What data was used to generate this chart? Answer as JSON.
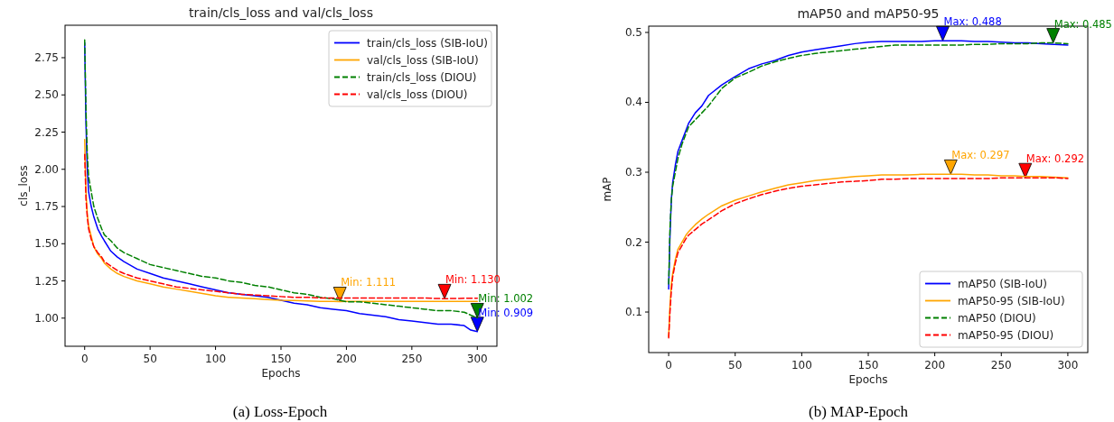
{
  "chart_data": [
    {
      "type": "line",
      "title": "train/cls_loss and val/cls_loss",
      "xlabel": "Epochs",
      "ylabel": "cls_loss",
      "x": [
        0,
        1,
        2,
        3,
        5,
        7,
        10,
        13,
        15,
        20,
        25,
        30,
        40,
        50,
        60,
        70,
        80,
        90,
        100,
        110,
        120,
        130,
        140,
        150,
        160,
        170,
        180,
        190,
        195,
        200,
        210,
        220,
        230,
        240,
        250,
        260,
        270,
        275,
        280,
        290,
        295,
        300
      ],
      "series": [
        {
          "name": "train/cls_loss (SIB-IoU)",
          "color": "#0000ff",
          "line_style": "solid",
          "values": [
            2.85,
            2.3,
            2.0,
            1.85,
            1.75,
            1.68,
            1.6,
            1.55,
            1.52,
            1.45,
            1.41,
            1.38,
            1.33,
            1.3,
            1.27,
            1.25,
            1.23,
            1.21,
            1.19,
            1.17,
            1.16,
            1.15,
            1.14,
            1.12,
            1.1,
            1.09,
            1.07,
            1.06,
            1.055,
            1.05,
            1.03,
            1.02,
            1.01,
            0.99,
            0.98,
            0.97,
            0.96,
            0.96,
            0.96,
            0.95,
            0.92,
            0.909
          ]
        },
        {
          "name": "val/cls_loss (SIB-IoU)",
          "color": "#ffa500",
          "line_style": "solid",
          "values": [
            2.2,
            1.85,
            1.7,
            1.62,
            1.55,
            1.48,
            1.43,
            1.4,
            1.37,
            1.33,
            1.3,
            1.28,
            1.25,
            1.23,
            1.21,
            1.195,
            1.18,
            1.165,
            1.15,
            1.14,
            1.135,
            1.13,
            1.125,
            1.12,
            1.118,
            1.115,
            1.113,
            1.112,
            1.111,
            1.112,
            1.112,
            1.112,
            1.112,
            1.112,
            1.112,
            1.112,
            1.112,
            1.112,
            1.112,
            1.112,
            1.112,
            1.112
          ]
        },
        {
          "name": "train/cls_loss (DIOU)",
          "color": "#008000",
          "line_style": "dashed",
          "values": [
            2.87,
            2.4,
            2.1,
            1.95,
            1.85,
            1.75,
            1.67,
            1.6,
            1.56,
            1.52,
            1.47,
            1.44,
            1.4,
            1.36,
            1.34,
            1.32,
            1.3,
            1.28,
            1.27,
            1.25,
            1.24,
            1.22,
            1.21,
            1.19,
            1.17,
            1.16,
            1.14,
            1.13,
            1.12,
            1.11,
            1.11,
            1.1,
            1.09,
            1.08,
            1.07,
            1.06,
            1.05,
            1.05,
            1.05,
            1.04,
            1.02,
            1.002
          ]
        },
        {
          "name": "val/cls_loss (DIOU)",
          "color": "#ff0000",
          "line_style": "dashed",
          "values": [
            2.1,
            1.8,
            1.68,
            1.6,
            1.53,
            1.48,
            1.44,
            1.41,
            1.38,
            1.35,
            1.32,
            1.3,
            1.27,
            1.25,
            1.23,
            1.21,
            1.2,
            1.19,
            1.18,
            1.17,
            1.16,
            1.155,
            1.15,
            1.145,
            1.14,
            1.14,
            1.135,
            1.135,
            1.135,
            1.135,
            1.135,
            1.135,
            1.135,
            1.135,
            1.135,
            1.135,
            1.132,
            1.13,
            1.132,
            1.133,
            1.133,
            1.133
          ]
        }
      ],
      "xlim": [
        -15,
        315
      ],
      "xticks": [
        0,
        50,
        100,
        150,
        200,
        250,
        300
      ],
      "ylim": [
        0.811,
        2.968
      ],
      "yticks": [
        {
          "value": 1,
          "label": "1.00"
        },
        {
          "value": 1.25,
          "label": "1.25"
        },
        {
          "value": 1.5,
          "label": "1.50"
        },
        {
          "value": 1.75,
          "label": "1.75"
        },
        {
          "value": 2,
          "label": "2.00"
        },
        {
          "value": 2.25,
          "label": "2.25"
        },
        {
          "value": 2.5,
          "label": "2.50"
        },
        {
          "value": 2.75,
          "label": "2.75"
        }
      ],
      "legend": "top right",
      "grid": false,
      "annotations": [
        {
          "text": "Min: 0.909",
          "x": 300,
          "y": 0.909
        },
        {
          "text": "Min: 1.111",
          "x": 195,
          "y": 1.111
        },
        {
          "text": "Min: 1.002",
          "x": 300,
          "y": 1.002
        },
        {
          "text": "Min: 1.130",
          "x": 275,
          "y": 1.13
        },
        "(a) Loss-Epoch"
      ]
    },
    {
      "type": "line",
      "title": "mAP50 and mAP50-95",
      "xlabel": "Epochs",
      "ylabel": "mAP",
      "x": [
        0,
        1,
        2,
        3,
        5,
        7,
        10,
        13,
        15,
        20,
        25,
        30,
        40,
        50,
        60,
        70,
        80,
        90,
        100,
        110,
        120,
        130,
        140,
        150,
        160,
        170,
        180,
        190,
        200,
        206,
        212,
        220,
        230,
        240,
        250,
        260,
        268,
        270,
        280,
        289,
        290,
        300
      ],
      "series": [
        {
          "name": "mAP50 (SIB-IoU)",
          "color": "#0000ff",
          "line_style": "solid",
          "values": [
            0.133,
            0.21,
            0.26,
            0.285,
            0.31,
            0.33,
            0.345,
            0.36,
            0.37,
            0.385,
            0.395,
            0.41,
            0.425,
            0.437,
            0.448,
            0.455,
            0.46,
            0.467,
            0.472,
            0.475,
            0.478,
            0.481,
            0.484,
            0.486,
            0.487,
            0.487,
            0.487,
            0.487,
            0.488,
            0.488,
            0.488,
            0.488,
            0.487,
            0.487,
            0.486,
            0.485,
            0.485,
            0.485,
            0.484,
            0.483,
            0.483,
            0.482
          ]
        },
        {
          "name": "mAP50-95 (SIB-IoU)",
          "color": "#ffa500",
          "line_style": "solid",
          "values": [
            0.065,
            0.11,
            0.14,
            0.155,
            0.175,
            0.19,
            0.2,
            0.21,
            0.215,
            0.225,
            0.233,
            0.24,
            0.252,
            0.26,
            0.266,
            0.272,
            0.277,
            0.282,
            0.285,
            0.288,
            0.29,
            0.292,
            0.294,
            0.295,
            0.296,
            0.296,
            0.296,
            0.297,
            0.297,
            0.297,
            0.297,
            0.297,
            0.296,
            0.296,
            0.295,
            0.295,
            0.294,
            0.294,
            0.294,
            0.293,
            0.293,
            0.292
          ]
        },
        {
          "name": "mAP50 (DIOU)",
          "color": "#008000",
          "line_style": "dashed",
          "values": [
            0.14,
            0.22,
            0.26,
            0.28,
            0.3,
            0.32,
            0.34,
            0.355,
            0.365,
            0.375,
            0.385,
            0.395,
            0.42,
            0.435,
            0.443,
            0.452,
            0.458,
            0.463,
            0.467,
            0.47,
            0.472,
            0.474,
            0.476,
            0.478,
            0.48,
            0.482,
            0.482,
            0.482,
            0.482,
            0.482,
            0.482,
            0.482,
            0.483,
            0.483,
            0.484,
            0.484,
            0.484,
            0.484,
            0.485,
            0.485,
            0.485,
            0.484
          ]
        },
        {
          "name": "mAP50-95 (DIOU)",
          "color": "#ff0000",
          "line_style": "dashed",
          "values": [
            0.063,
            0.1,
            0.13,
            0.15,
            0.17,
            0.185,
            0.195,
            0.205,
            0.21,
            0.218,
            0.226,
            0.232,
            0.245,
            0.255,
            0.262,
            0.268,
            0.273,
            0.277,
            0.28,
            0.282,
            0.284,
            0.286,
            0.287,
            0.288,
            0.29,
            0.29,
            0.291,
            0.291,
            0.291,
            0.291,
            0.291,
            0.291,
            0.291,
            0.291,
            0.292,
            0.292,
            0.292,
            0.292,
            0.292,
            0.292,
            0.292,
            0.291
          ]
        }
      ],
      "xlim": [
        -15,
        315
      ],
      "xticks": [
        0,
        50,
        100,
        150,
        200,
        250,
        300
      ],
      "ylim": [
        0.042,
        0.509
      ],
      "yticks": [
        0.1,
        0.2,
        0.3,
        0.4,
        0.5
      ],
      "legend": "bottom right",
      "grid": false,
      "annotations": [
        {
          "text": "Max: 0.488",
          "x": 206,
          "y": 0.488
        },
        {
          "text": "Max: 0.297",
          "x": 212,
          "y": 0.297
        },
        {
          "text": "Max: 0.485",
          "x": 289,
          "y": 0.485
        },
        {
          "text": "Max: 0.292",
          "x": 268,
          "y": 0.292
        },
        "(b) MAP-Epoch"
      ]
    }
  ]
}
